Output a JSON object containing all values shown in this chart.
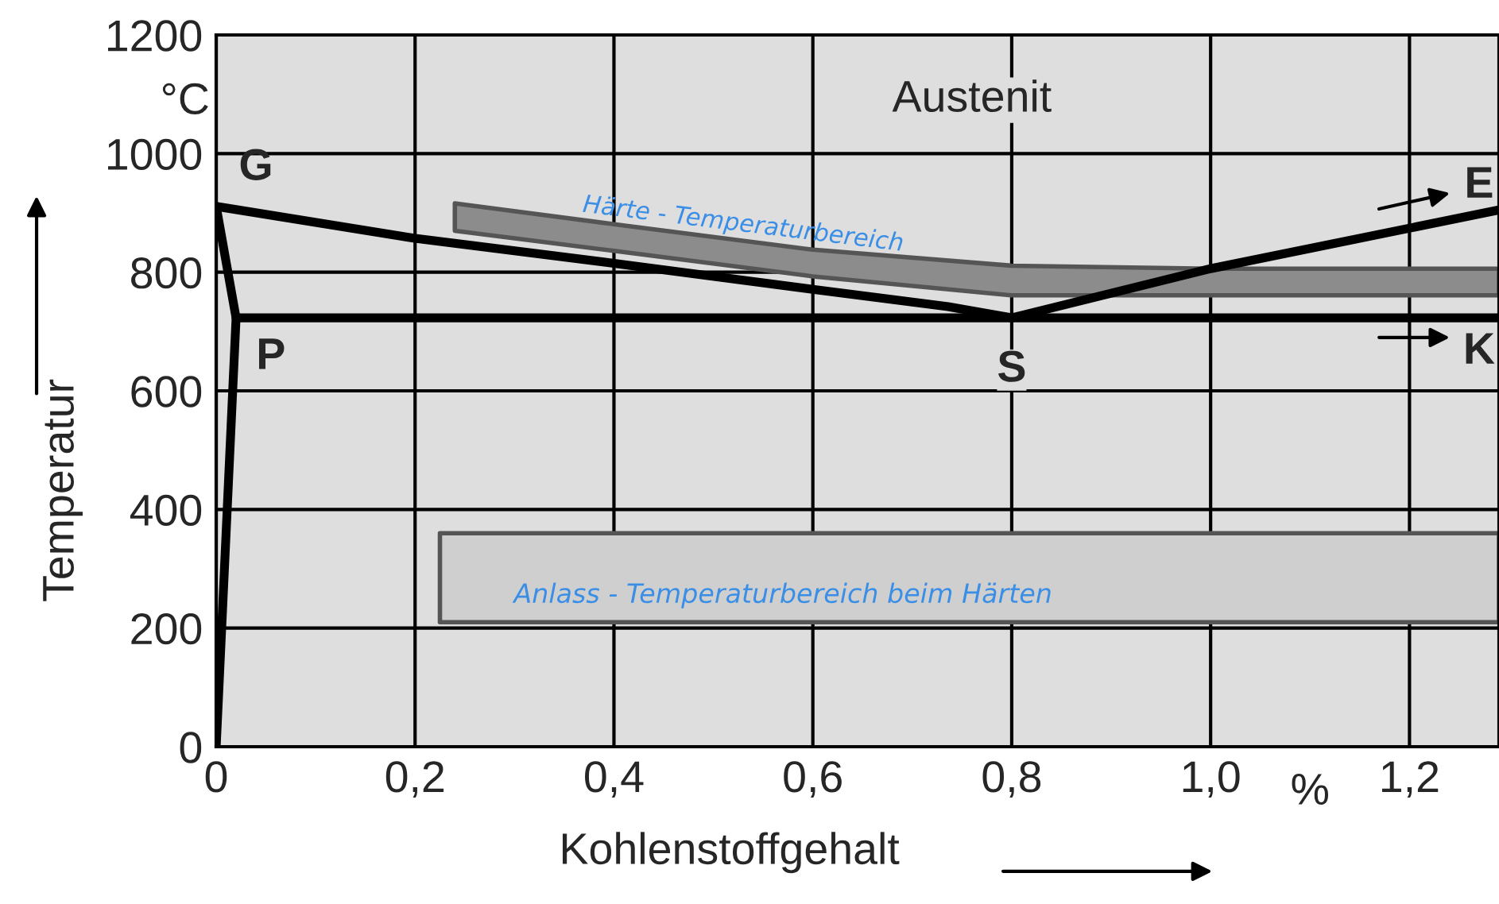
{
  "chart_data": {
    "type": "line",
    "xlabel": "Kohlenstoffgehalt",
    "ylabel": "Temperatur",
    "xlim": [
      0,
      1.29
    ],
    "ylim": [
      0,
      1200
    ],
    "xticks": [
      {
        "value": 0,
        "label": "0"
      },
      {
        "value": 0.2,
        "label": "0,2"
      },
      {
        "value": 0.4,
        "label": "0,4"
      },
      {
        "value": 0.6,
        "label": "0,6"
      },
      {
        "value": 0.8,
        "label": "0,8"
      },
      {
        "value": 1.0,
        "label": "1,0"
      },
      {
        "value": 1.2,
        "label": "1,2"
      }
    ],
    "yticks": [
      0,
      200,
      400,
      600,
      800,
      1000,
      1200
    ],
    "grid": true,
    "legend": false,
    "marker": "none",
    "line_style": "solid",
    "series": [
      {
        "type": "line",
        "color": "#cfcfcf",
        "x": [
          0.225,
          1.29
        ],
        "values": [
          null,
          null
        ],
        "lower": [
          210,
          210
        ],
        "upper": [
          360,
          360
        ]
      },
      {
        "type": "line",
        "color": "#8c8c8c",
        "x": [
          0.24,
          0.4,
          0.6,
          0.8,
          1.0,
          1.29
        ],
        "values": [
          null,
          null,
          null,
          null,
          null,
          null
        ],
        "lower": [
          870,
          836,
          793,
          761,
          761,
          761
        ],
        "upper": [
          916,
          881,
          838,
          811,
          806,
          806
        ]
      },
      {
        "color": "#000000",
        "x": [
          0,
          0.2,
          0.4,
          0.6,
          0.736,
          0.8,
          1.0,
          1.29
        ],
        "values": [
          911,
          857,
          815,
          771,
          742,
          723,
          806,
          905
        ]
      },
      {
        "color": "#000000",
        "x": [
          0,
          0.02,
          0
        ],
        "values": [
          911,
          723,
          0
        ]
      },
      {
        "color": "#000000",
        "x": [
          0.02,
          1.29
        ],
        "values": [
          723,
          723
        ]
      }
    ],
    "annotations": [
      "°C",
      "%",
      "Austenit",
      "G",
      "P",
      "S",
      "E",
      "K",
      "Härte - Temperaturbereich",
      "Anlass - Temperaturbereich beim Härten"
    ]
  }
}
